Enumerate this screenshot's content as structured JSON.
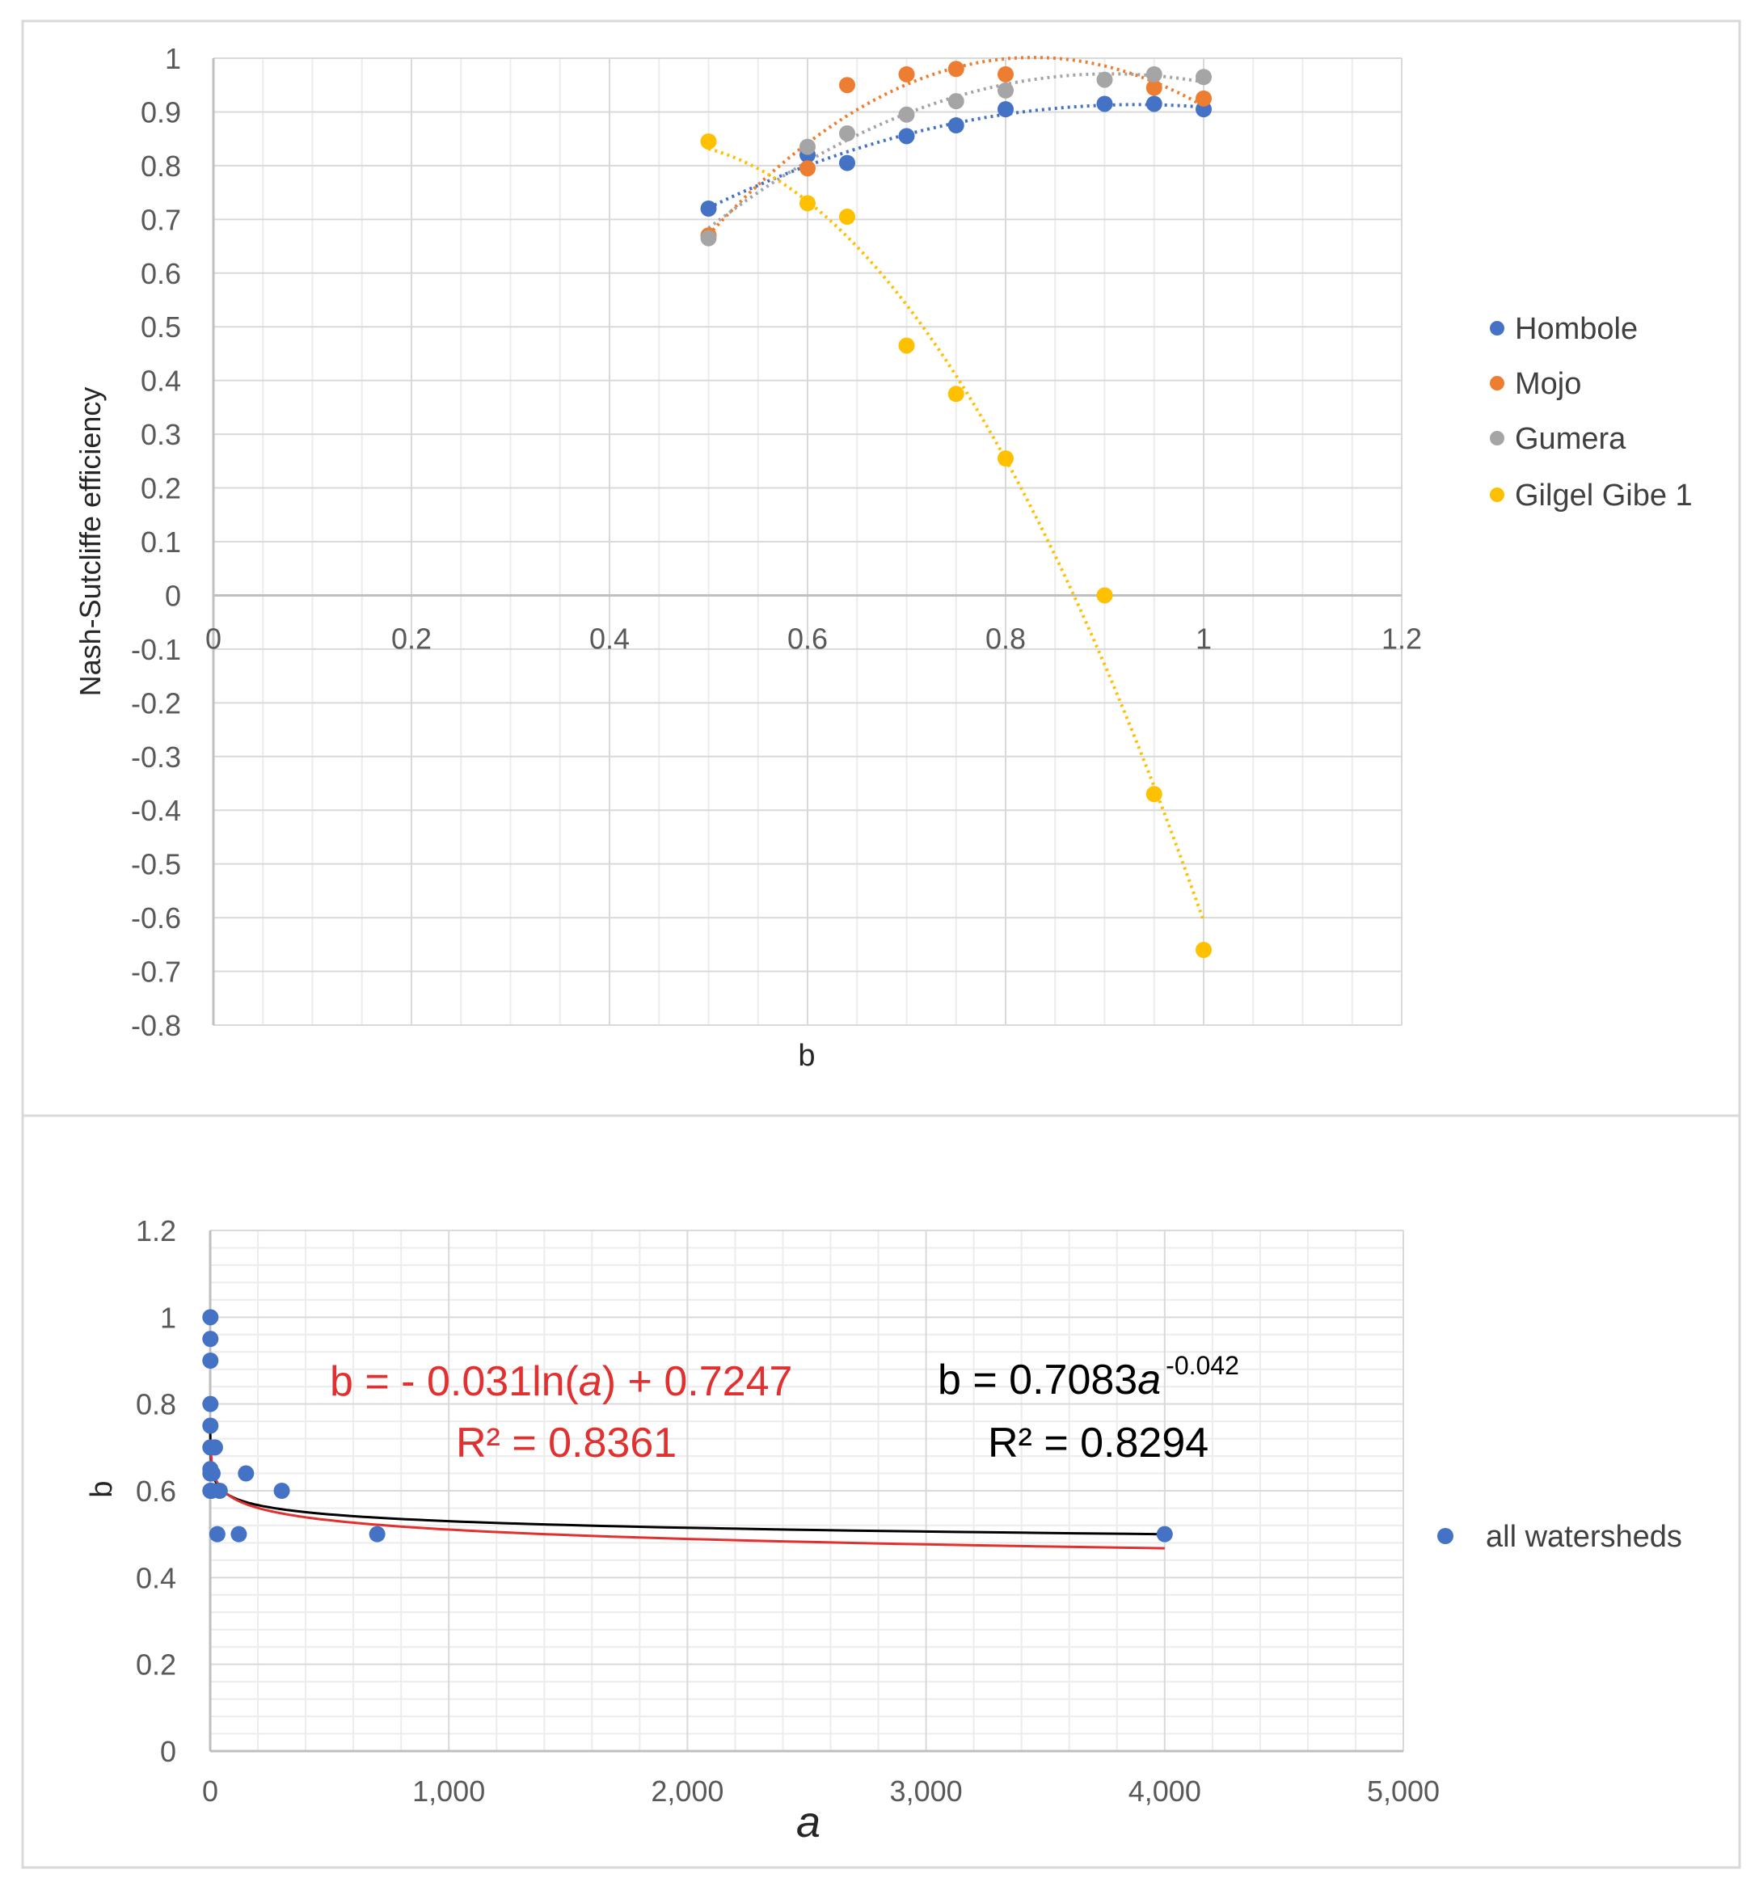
{
  "chart_data": [
    {
      "type": "scatter",
      "title": "",
      "xlabel": "b",
      "ylabel": "Nash-Sutcliffe efficiency",
      "xlim": [
        0,
        1.2
      ],
      "ylim": [
        -0.8,
        1
      ],
      "x_ticks": [
        0,
        0.2,
        0.4,
        0.6,
        0.8,
        1,
        1.2
      ],
      "x_tick_labels": [
        "0",
        "0.2",
        "0.4",
        "0.6",
        "0.8",
        "1",
        "1.2"
      ],
      "y_ticks": [
        1,
        0.9,
        0.8,
        0.7,
        0.6,
        0.5,
        0.4,
        0.3,
        0.2,
        0.1,
        0,
        -0.1,
        -0.2,
        -0.3,
        -0.4,
        -0.5,
        -0.6,
        -0.7,
        -0.8
      ],
      "y_tick_labels": [
        "1",
        "0.9",
        "0.8",
        "0.7",
        "0.6",
        "0.5",
        "0.4",
        "0.3",
        "0.2",
        "0.1",
        "0",
        "-0.1",
        "-0.2",
        "-0.3",
        "-0.4",
        "-0.5",
        "-0.6",
        "-0.7",
        "-0.8"
      ],
      "grid": true,
      "legend_position": "right",
      "trendline": "dotted polynomial (order 2) per series",
      "series": [
        {
          "name": "Hombole",
          "color": "#4472c4",
          "x": [
            0.5,
            0.6,
            0.64,
            0.7,
            0.75,
            0.8,
            0.9,
            0.95,
            1.0
          ],
          "y": [
            0.72,
            0.82,
            0.805,
            0.855,
            0.875,
            0.905,
            0.915,
            0.915,
            0.905
          ]
        },
        {
          "name": "Mojo",
          "color": "#ed7d31",
          "x": [
            0.5,
            0.6,
            0.64,
            0.7,
            0.75,
            0.8,
            0.95,
            1.0
          ],
          "y": [
            0.67,
            0.795,
            0.95,
            0.97,
            0.98,
            0.97,
            0.945,
            0.925
          ]
        },
        {
          "name": "Gumera",
          "color": "#a5a5a5",
          "x": [
            0.5,
            0.6,
            0.64,
            0.7,
            0.75,
            0.8,
            0.9,
            0.95,
            1.0
          ],
          "y": [
            0.665,
            0.835,
            0.86,
            0.895,
            0.92,
            0.94,
            0.96,
            0.97,
            0.965
          ]
        },
        {
          "name": "Gilgel Gibe 1",
          "color": "#ffc000",
          "x": [
            0.5,
            0.6,
            0.64,
            0.7,
            0.75,
            0.8,
            0.9,
            0.95,
            1.0
          ],
          "y": [
            0.845,
            0.73,
            0.705,
            0.465,
            0.375,
            0.255,
            0.0,
            -0.37,
            -0.66
          ]
        }
      ]
    },
    {
      "type": "scatter",
      "title": "",
      "xlabel": "a",
      "ylabel": "b",
      "xlim": [
        0,
        5000
      ],
      "ylim": [
        0,
        1.2
      ],
      "x_ticks": [
        0,
        1000,
        2000,
        3000,
        4000,
        5000
      ],
      "x_tick_labels": [
        "0",
        "1,000",
        "2,000",
        "3,000",
        "4,000",
        "5,000"
      ],
      "y_ticks": [
        1.2,
        1,
        0.8,
        0.6,
        0.4,
        0.2,
        0
      ],
      "y_tick_labels": [
        "1.2",
        "1",
        "0.8",
        "0.6",
        "0.4",
        "0.2",
        "0"
      ],
      "grid": true,
      "legend_position": "right",
      "series": [
        {
          "name": "all watersheds",
          "color": "#4472c4",
          "x": [
            1,
            1,
            1,
            1,
            1,
            1,
            1,
            1,
            1,
            3,
            5,
            5,
            10,
            20,
            30,
            40,
            120,
            150,
            300,
            700,
            4000
          ],
          "y": [
            1.0,
            0.95,
            0.9,
            0.8,
            0.75,
            0.7,
            0.65,
            0.64,
            0.6,
            0.6,
            0.7,
            0.6,
            0.64,
            0.7,
            0.5,
            0.6,
            0.5,
            0.64,
            0.6,
            0.5,
            0.5
          ]
        }
      ],
      "trendlines": [
        {
          "type": "log",
          "color": "#e03030",
          "equation_parts": [
            "b = - 0.031ln(",
            "a",
            ") + 0.7247"
          ],
          "r2_text": "R² = 0.8361",
          "x_range": [
            3,
            4000
          ]
        },
        {
          "type": "power",
          "color": "#000000",
          "equation_parts": [
            "b = 0.7083",
            "a",
            "-0.042"
          ],
          "r2_text": "R² = 0.8294",
          "x_range": [
            0.2,
            4000
          ]
        }
      ]
    }
  ]
}
